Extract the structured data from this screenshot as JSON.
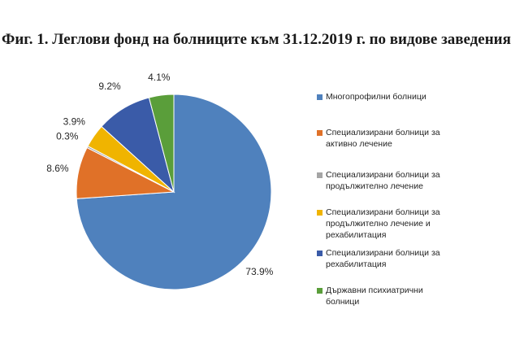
{
  "chart_data": {
    "type": "pie",
    "title": "Фиг. 1. Леглови фонд на болниците към 31.12.2019 г. по видове заведения",
    "slices": [
      {
        "label": "Многопрофилни болници",
        "value": 73.9,
        "display": "73.9%",
        "color": "#4f81bd"
      },
      {
        "label": "Специализирани болници за активно лечение",
        "value": 8.6,
        "display": "8.6%",
        "color": "#e07128"
      },
      {
        "label": "Специализирани болници за продължително лечение",
        "value": 0.3,
        "display": "0.3%",
        "color": "#a5a5a5"
      },
      {
        "label": "Специализирани болници за продължително лечение и рехабилитация",
        "value": 3.9,
        "display": "3.9%",
        "color": "#f0b400"
      },
      {
        "label": "Специализирани болници за рехабилитация",
        "value": 9.2,
        "display": "9.2%",
        "color": "#3a5ba8"
      },
      {
        "label": "Държавни психиатрични болници",
        "value": 4.1,
        "display": "4.1%",
        "color": "#5a9e3a"
      }
    ],
    "legend_lines": [
      "Многопрофилни болници",
      "Специализирани болници за\nактивно лечение",
      "Специализирани болници за\nпродължително лечение",
      "Специализирани болници за\nпродължително лечение и\nрехабилитация",
      "Специализирани болници за\nрехабилитация",
      "Държавни психиатрични\nболници"
    ],
    "legend_position": "right",
    "start_angle_deg": 0,
    "direction": "clockwise-from-top"
  }
}
